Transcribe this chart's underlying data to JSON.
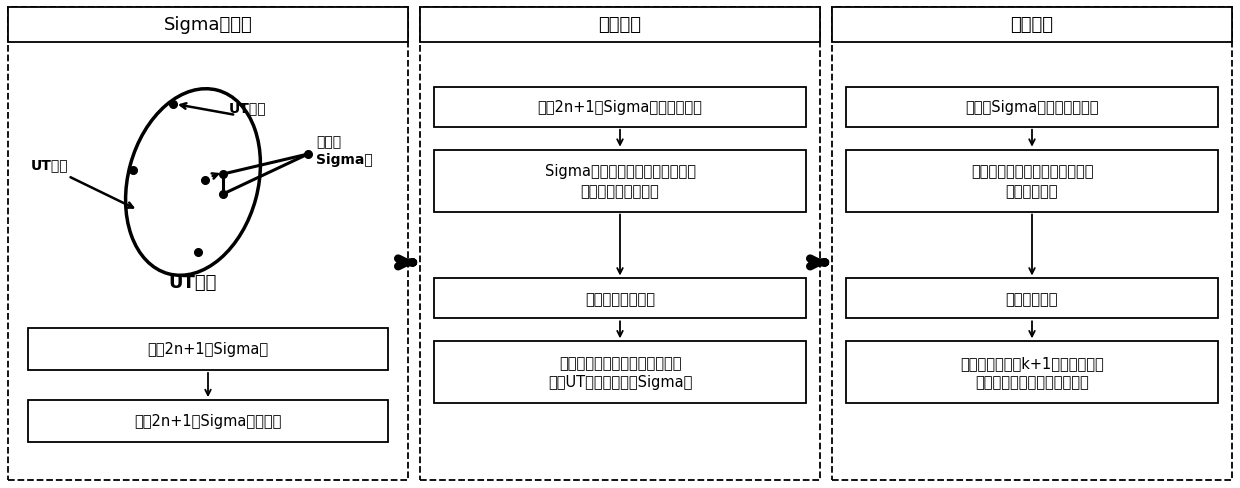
{
  "title1": "Sigma点采样",
  "title2": "状态预测",
  "title3": "状态估计",
  "col1_boxes": [
    "计算2n+1个Sigma点",
    "计算2n+1个Sigma点的权値"
  ],
  "col2_boxes": [
    "计算2n+1个Sigma点的一步预测",
    "Sigma点的预测値加权求和得到系\n统状态量的一步预测",
    "计算系统协方差阵",
    "对系统状态量的一步预测値再次\n进行UT变换产生新的Sigma点"
  ],
  "col3_boxes": [
    "将新的Sigma点代入观测方程",
    "计算后验均値、后验自协方差、\n后验互协方差",
    "计算滤波增益",
    "量测更新，得到k+1时刻的最优滤\n波状态估计以及误差协方差阵"
  ],
  "ut_mean_label": "UT均値",
  "ut_var_label": "UT方差",
  "ut_transform_label": "UT变换",
  "after_transform_label": "变换后\nSigma点"
}
